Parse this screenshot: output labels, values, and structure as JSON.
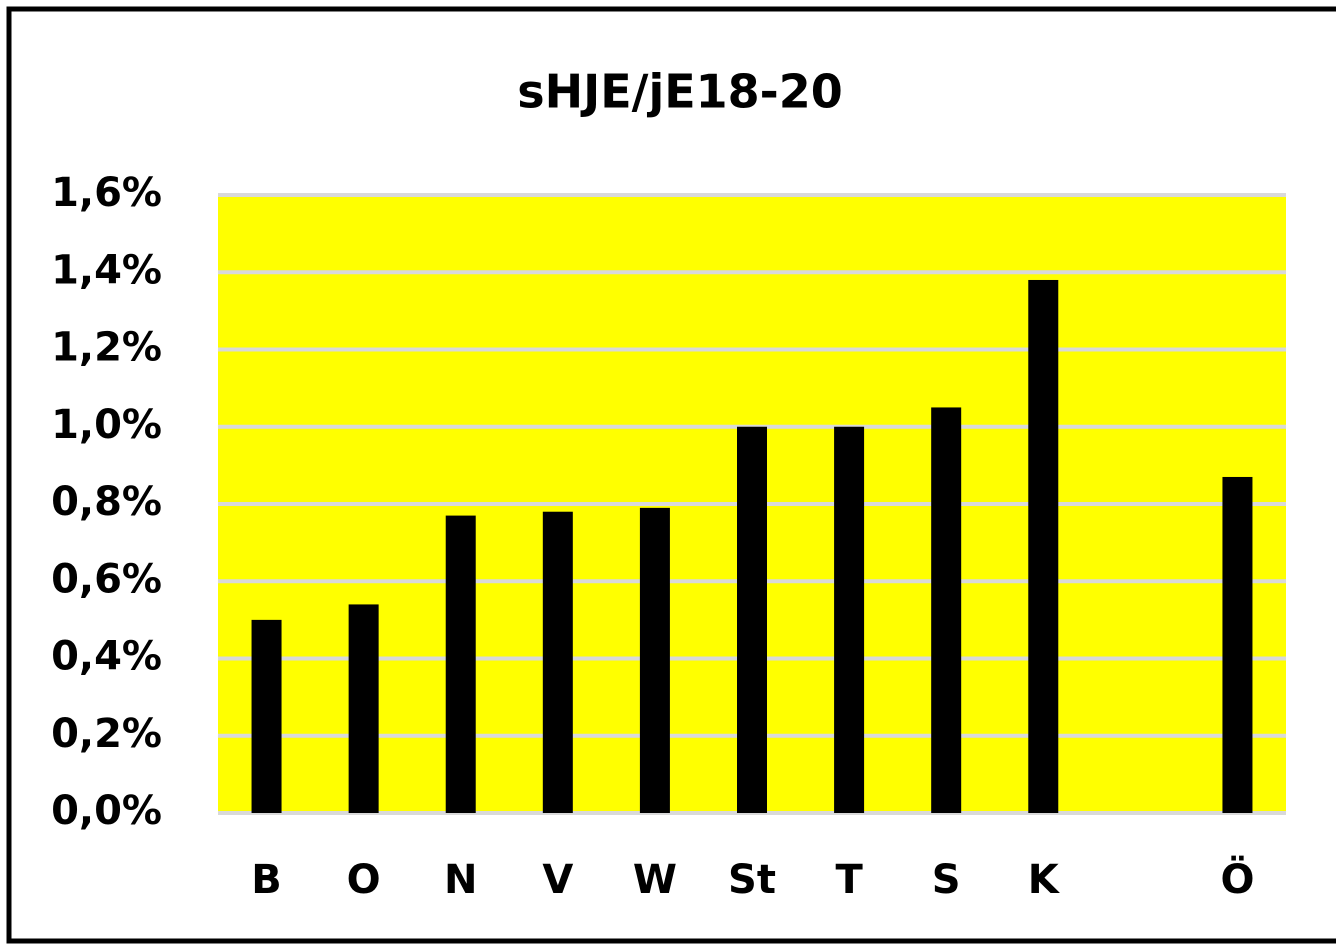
{
  "chart_data": {
    "type": "bar",
    "title": "sHJE/jE18-20",
    "categories": [
      "B",
      "O",
      "N",
      "V",
      "W",
      "St",
      "T",
      "S",
      "K",
      null,
      "Ö"
    ],
    "values": [
      0.5,
      0.54,
      0.77,
      0.78,
      0.79,
      1.0,
      1.0,
      1.05,
      1.38,
      null,
      0.87
    ],
    "color": "#000000",
    "background": "#ffff00",
    "ylim": [
      0,
      1.6
    ],
    "yticks": [
      {
        "value": 0,
        "label": "0,0%"
      },
      {
        "value": 0.2,
        "label": "0,2%"
      },
      {
        "value": 0.4,
        "label": "0,4%"
      },
      {
        "value": 0.6,
        "label": "0,6%"
      },
      {
        "value": 0.8,
        "label": "0,8%"
      },
      {
        "value": 1.0,
        "label": "1,0%"
      },
      {
        "value": 1.2,
        "label": "1,2%"
      },
      {
        "value": 1.4,
        "label": "1,4%"
      },
      {
        "value": 1.6,
        "label": "1,6%"
      }
    ],
    "grid": true
  }
}
